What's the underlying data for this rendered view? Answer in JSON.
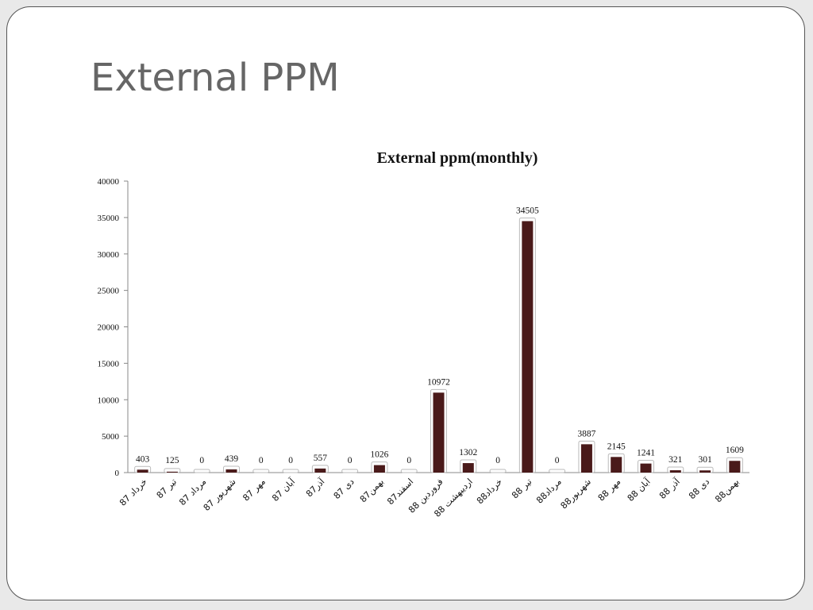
{
  "slide": {
    "title": "External PPM"
  },
  "chart_data": {
    "type": "bar",
    "title": "External ppm(monthly)",
    "xlabel": "",
    "ylabel": "",
    "ylim": [
      0,
      40000
    ],
    "yticks": [
      0,
      5000,
      10000,
      15000,
      20000,
      25000,
      30000,
      35000,
      40000
    ],
    "grid": false,
    "bar_color": "#4a1a1a",
    "categories": [
      "خرداد 87",
      "تیر 87",
      "مرداد 87",
      "شهریور 87",
      "مهر 87",
      "آبان 87",
      "آذر87",
      "دی 87",
      "بهمن87",
      "اسفند87",
      "فروردین 88",
      "اردیبهشت 88",
      "خرداد88",
      "تیر 88",
      "مرداد88",
      "شهریور88",
      "مهر 88",
      "آبان 88",
      "آذر 88",
      "دی 88",
      "بهمن88"
    ],
    "values": [
      403,
      125,
      0,
      439,
      0,
      0,
      557,
      0,
      1026,
      0,
      10972,
      1302,
      0,
      34505,
      0,
      3887,
      2145,
      1241,
      321,
      301,
      1609
    ]
  }
}
